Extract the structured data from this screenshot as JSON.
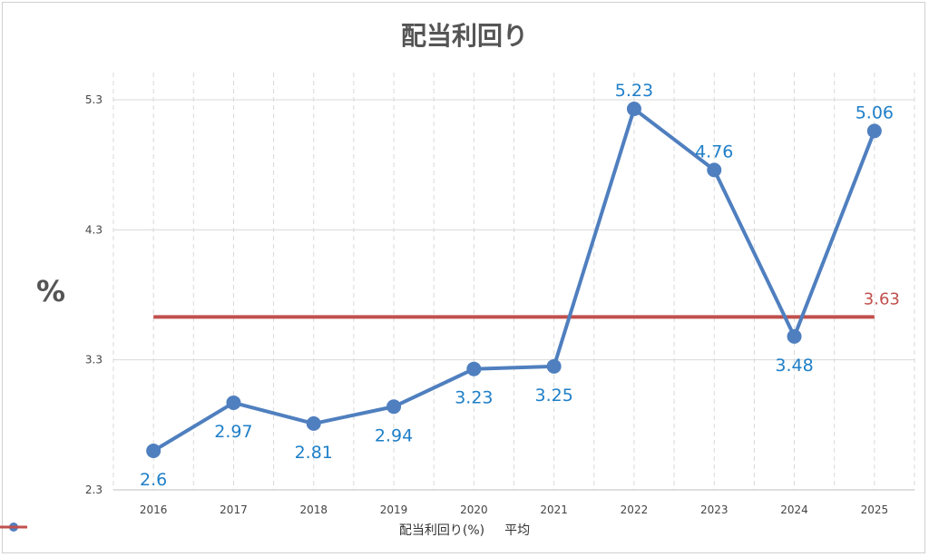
{
  "chart_data": {
    "type": "line",
    "title": "配当利回り",
    "ylabel": "%",
    "xlabel": "",
    "categories": [
      "2016",
      "2017",
      "2018",
      "2019",
      "2020",
      "2021",
      "2022",
      "2023",
      "2024",
      "2025"
    ],
    "series": [
      {
        "name": "配当利回り(%)",
        "values": [
          2.6,
          2.97,
          2.81,
          2.94,
          3.23,
          3.25,
          5.23,
          4.76,
          3.48,
          5.06
        ],
        "color": "#4f7fbf",
        "label_color": "#1f7fc8"
      },
      {
        "name": "平均",
        "values": [
          3.63,
          3.63,
          3.63,
          3.63,
          3.63,
          3.63,
          3.63,
          3.63,
          3.63,
          3.63
        ],
        "color": "#c0504d",
        "label": "3.63"
      }
    ],
    "ylim": [
      2.3,
      5.3
    ],
    "yticks": [
      "2.3",
      "3.3",
      "4.3",
      "5.3"
    ],
    "grid": true,
    "legend": "bottom"
  }
}
